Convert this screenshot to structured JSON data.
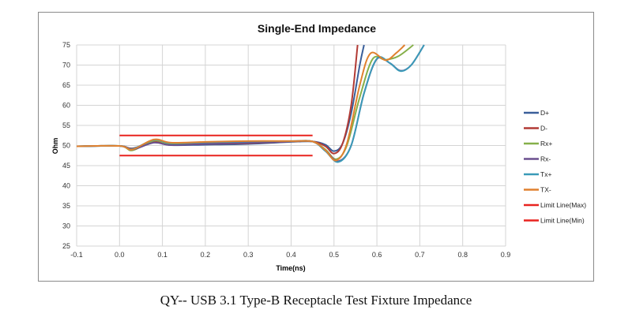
{
  "caption": "QY-- USB 3.1 Type-B Receptacle Test Fixture Impedance",
  "chart_data": {
    "type": "line",
    "title": "Single-End Impedance",
    "xlabel": "Time(ns)",
    "ylabel": "Ohm",
    "xlim": [
      -0.1,
      0.9
    ],
    "ylim": [
      25,
      75
    ],
    "xticks": [
      "-0.1",
      "0.0",
      "0.1",
      "0.2",
      "0.3",
      "0.4",
      "0.5",
      "0.6",
      "0.7",
      "0.8",
      "0.9"
    ],
    "yticks": [
      "25",
      "30",
      "35",
      "40",
      "45",
      "50",
      "55",
      "60",
      "65",
      "70",
      "75"
    ],
    "grid": true,
    "legend": "right",
    "series": [
      {
        "name": "D+",
        "color": "#3a5f9a",
        "points": [
          [
            -0.1,
            49.8
          ],
          [
            0,
            49.9
          ],
          [
            0.03,
            49.3
          ],
          [
            0.08,
            50.8
          ],
          [
            0.12,
            50.1
          ],
          [
            0.2,
            50.2
          ],
          [
            0.3,
            50.4
          ],
          [
            0.4,
            50.9
          ],
          [
            0.45,
            51
          ],
          [
            0.48,
            50.2
          ],
          [
            0.5,
            48.6
          ],
          [
            0.52,
            50.5
          ],
          [
            0.54,
            58
          ],
          [
            0.56,
            70
          ],
          [
            0.57,
            75
          ]
        ]
      },
      {
        "name": "D-",
        "color": "#b23a35",
        "points": [
          [
            -0.1,
            49.8
          ],
          [
            0,
            49.9
          ],
          [
            0.03,
            49.2
          ],
          [
            0.08,
            50.9
          ],
          [
            0.12,
            50.2
          ],
          [
            0.2,
            50.4
          ],
          [
            0.3,
            50.6
          ],
          [
            0.4,
            51
          ],
          [
            0.45,
            51
          ],
          [
            0.48,
            49.8
          ],
          [
            0.5,
            48
          ],
          [
            0.52,
            50.5
          ],
          [
            0.54,
            60
          ],
          [
            0.555,
            75
          ]
        ]
      },
      {
        "name": "Rx+",
        "color": "#86b04a",
        "points": [
          [
            -0.1,
            49.8
          ],
          [
            0,
            49.9
          ],
          [
            0.03,
            48.8
          ],
          [
            0.08,
            51.2
          ],
          [
            0.12,
            50.4
          ],
          [
            0.2,
            50.6
          ],
          [
            0.3,
            50.9
          ],
          [
            0.4,
            51
          ],
          [
            0.45,
            51
          ],
          [
            0.48,
            49
          ],
          [
            0.505,
            46.6
          ],
          [
            0.53,
            50
          ],
          [
            0.56,
            62
          ],
          [
            0.59,
            71.5
          ],
          [
            0.62,
            71.3
          ],
          [
            0.65,
            72.2
          ],
          [
            0.685,
            75
          ]
        ]
      },
      {
        "name": "Rx-",
        "color": "#6a4f8e",
        "points": [
          [
            -0.1,
            49.8
          ],
          [
            0,
            49.9
          ],
          [
            0.03,
            49
          ],
          [
            0.08,
            50.7
          ],
          [
            0.12,
            50.1
          ],
          [
            0.2,
            50.4
          ],
          [
            0.3,
            50.7
          ],
          [
            0.4,
            51
          ],
          [
            0.45,
            51
          ],
          [
            0.48,
            48.8
          ],
          [
            0.51,
            46.1
          ],
          [
            0.54,
            50
          ],
          [
            0.57,
            63
          ],
          [
            0.6,
            71.5
          ],
          [
            0.63,
            70.5
          ],
          [
            0.655,
            68.6
          ],
          [
            0.68,
            70
          ],
          [
            0.71,
            75
          ]
        ]
      },
      {
        "name": "Tx+",
        "color": "#3a9ab8",
        "points": [
          [
            -0.1,
            49.8
          ],
          [
            0,
            49.9
          ],
          [
            0.03,
            49.1
          ],
          [
            0.08,
            51.4
          ],
          [
            0.12,
            50.6
          ],
          [
            0.2,
            50.8
          ],
          [
            0.3,
            51
          ],
          [
            0.4,
            51.1
          ],
          [
            0.45,
            51
          ],
          [
            0.48,
            48.6
          ],
          [
            0.51,
            45.9
          ],
          [
            0.54,
            50
          ],
          [
            0.57,
            63
          ],
          [
            0.6,
            71.6
          ],
          [
            0.63,
            70.5
          ],
          [
            0.655,
            68.5
          ],
          [
            0.68,
            70
          ],
          [
            0.71,
            75
          ]
        ]
      },
      {
        "name": "TX-",
        "color": "#e0812f",
        "points": [
          [
            -0.1,
            49.8
          ],
          [
            0,
            49.9
          ],
          [
            0.03,
            49
          ],
          [
            0.08,
            51.5
          ],
          [
            0.12,
            50.7
          ],
          [
            0.2,
            50.9
          ],
          [
            0.3,
            51.1
          ],
          [
            0.4,
            51.1
          ],
          [
            0.45,
            51
          ],
          [
            0.48,
            48.8
          ],
          [
            0.505,
            46.3
          ],
          [
            0.53,
            50.5
          ],
          [
            0.56,
            65
          ],
          [
            0.585,
            72.9
          ],
          [
            0.62,
            71.2
          ],
          [
            0.645,
            73
          ],
          [
            0.665,
            75
          ]
        ]
      },
      {
        "name": "Limit Line(Max)",
        "color": "#e8231f",
        "points": [
          [
            0,
            52.5
          ],
          [
            0.45,
            52.5
          ]
        ]
      },
      {
        "name": "Limit Line(Min)",
        "color": "#e8231f",
        "points": [
          [
            0,
            47.5
          ],
          [
            0.45,
            47.5
          ]
        ]
      }
    ]
  }
}
